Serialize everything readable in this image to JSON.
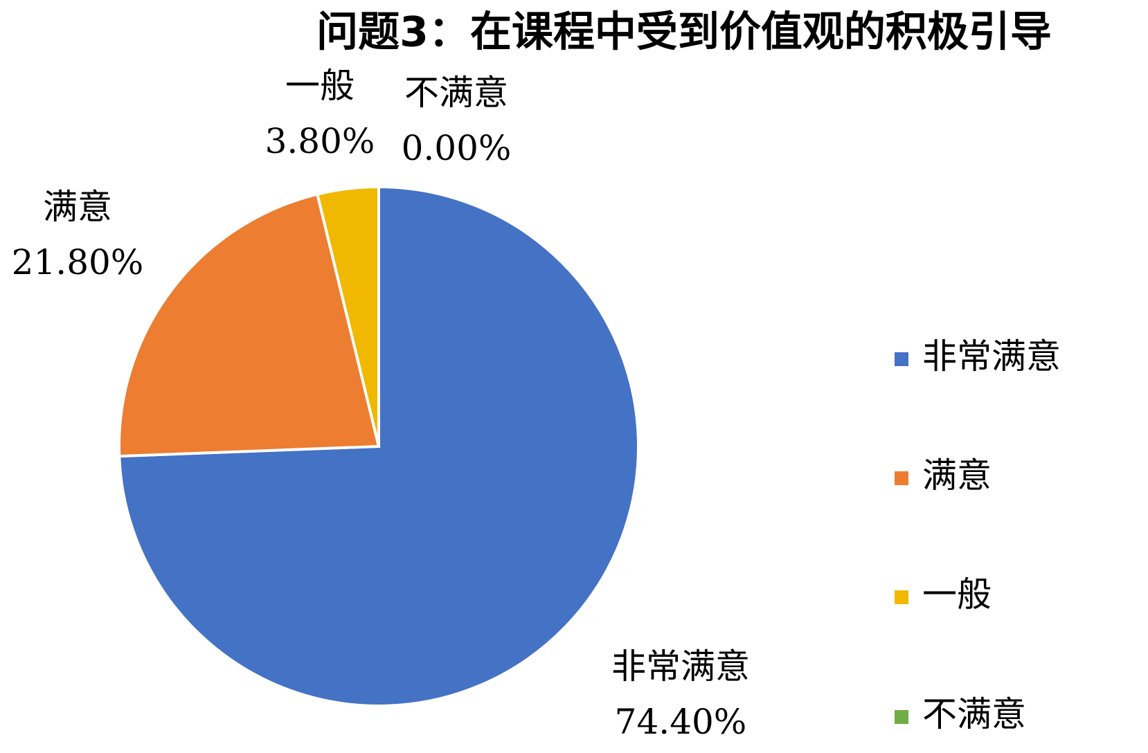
{
  "chart_data": {
    "type": "pie",
    "title": "问题3：在课程中受到价值观的积极引导",
    "categories": [
      "非常满意",
      "满意",
      "一般",
      "不满意"
    ],
    "values": [
      74.4,
      21.8,
      3.8,
      0.0
    ],
    "value_labels": [
      "74.40%",
      "21.80%",
      "3.80%",
      "0.00%"
    ],
    "colors": [
      "#4472c4",
      "#ed7d31",
      "#f0b800",
      "#70ad47"
    ],
    "legend": "right"
  }
}
